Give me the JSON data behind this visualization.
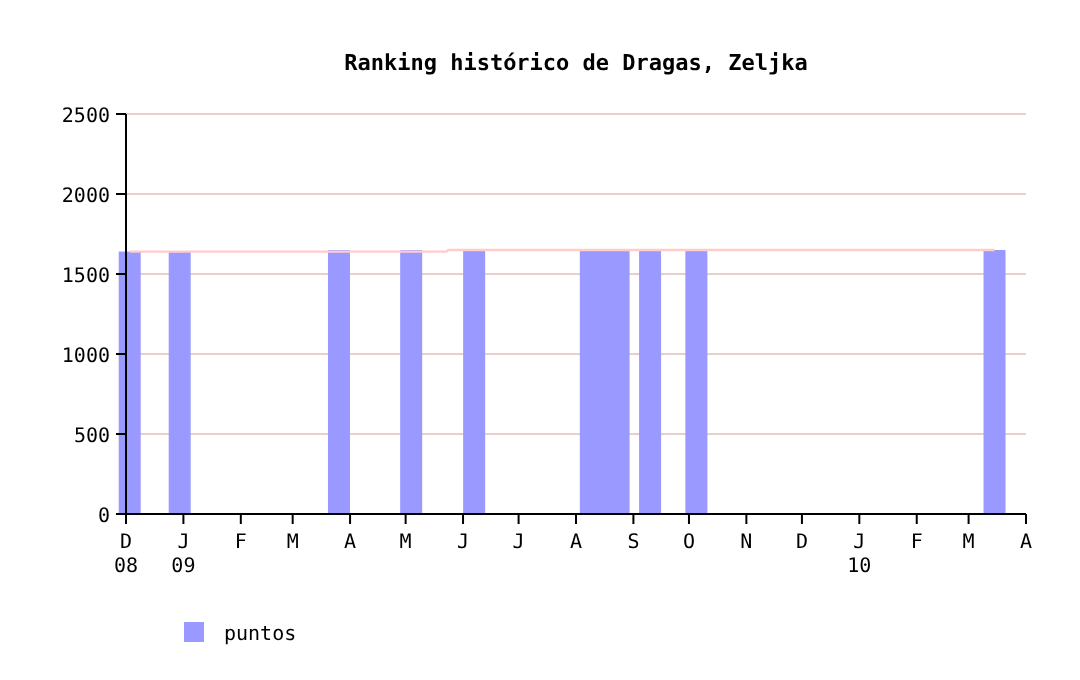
{
  "chart_data": {
    "type": "bar",
    "title": "Ranking histórico de Dragas, Zeljka",
    "series": [
      {
        "name": "puntos",
        "color": "#9999ff",
        "x": [
          "2008-12-03",
          "2008-12-30",
          "2009-03-26",
          "2009-05-04",
          "2009-06-07",
          "2009-08-09",
          "2009-08-17",
          "2009-08-24",
          "2009-09-10",
          "2009-10-05",
          "2010-03-15"
        ],
        "values": [
          1640,
          1640,
          1650,
          1650,
          1650,
          1650,
          1650,
          1650,
          1650,
          1650,
          1650
        ]
      },
      {
        "type": "line",
        "color": "#ffcccc",
        "x": [
          "2008-12-03",
          "2009-05-23",
          "2009-05-24",
          "2010-03-15"
        ],
        "values": [
          1640,
          1640,
          1650,
          1650
        ]
      }
    ],
    "xlim": [
      "2008-12-01",
      "2010-04-01"
    ],
    "xticks": [
      {
        "value": "2008-12-01",
        "label": "D\n08"
      },
      {
        "value": "2009-01-01",
        "label": "J\n09"
      },
      {
        "value": "2009-02-01",
        "label": "F"
      },
      {
        "value": "2009-03-01",
        "label": "M"
      },
      {
        "value": "2009-04-01",
        "label": "A"
      },
      {
        "value": "2009-05-01",
        "label": "M"
      },
      {
        "value": "2009-06-01",
        "label": "J"
      },
      {
        "value": "2009-07-01",
        "label": "J"
      },
      {
        "value": "2009-08-01",
        "label": "A"
      },
      {
        "value": "2009-09-01",
        "label": "S"
      },
      {
        "value": "2009-10-01",
        "label": "O"
      },
      {
        "value": "2009-11-01",
        "label": "N"
      },
      {
        "value": "2009-12-01",
        "label": "D"
      },
      {
        "value": "2010-01-01",
        "label": "J\n10"
      },
      {
        "value": "2010-02-01",
        "label": "F"
      },
      {
        "value": "2010-03-01",
        "label": "M"
      },
      {
        "value": "2010-04-01",
        "label": "A"
      }
    ],
    "ylim": [
      0,
      2500
    ],
    "yticks": [
      0,
      500,
      1000,
      1500,
      2000,
      2500
    ],
    "grid": "y",
    "legend": "bottom left"
  }
}
